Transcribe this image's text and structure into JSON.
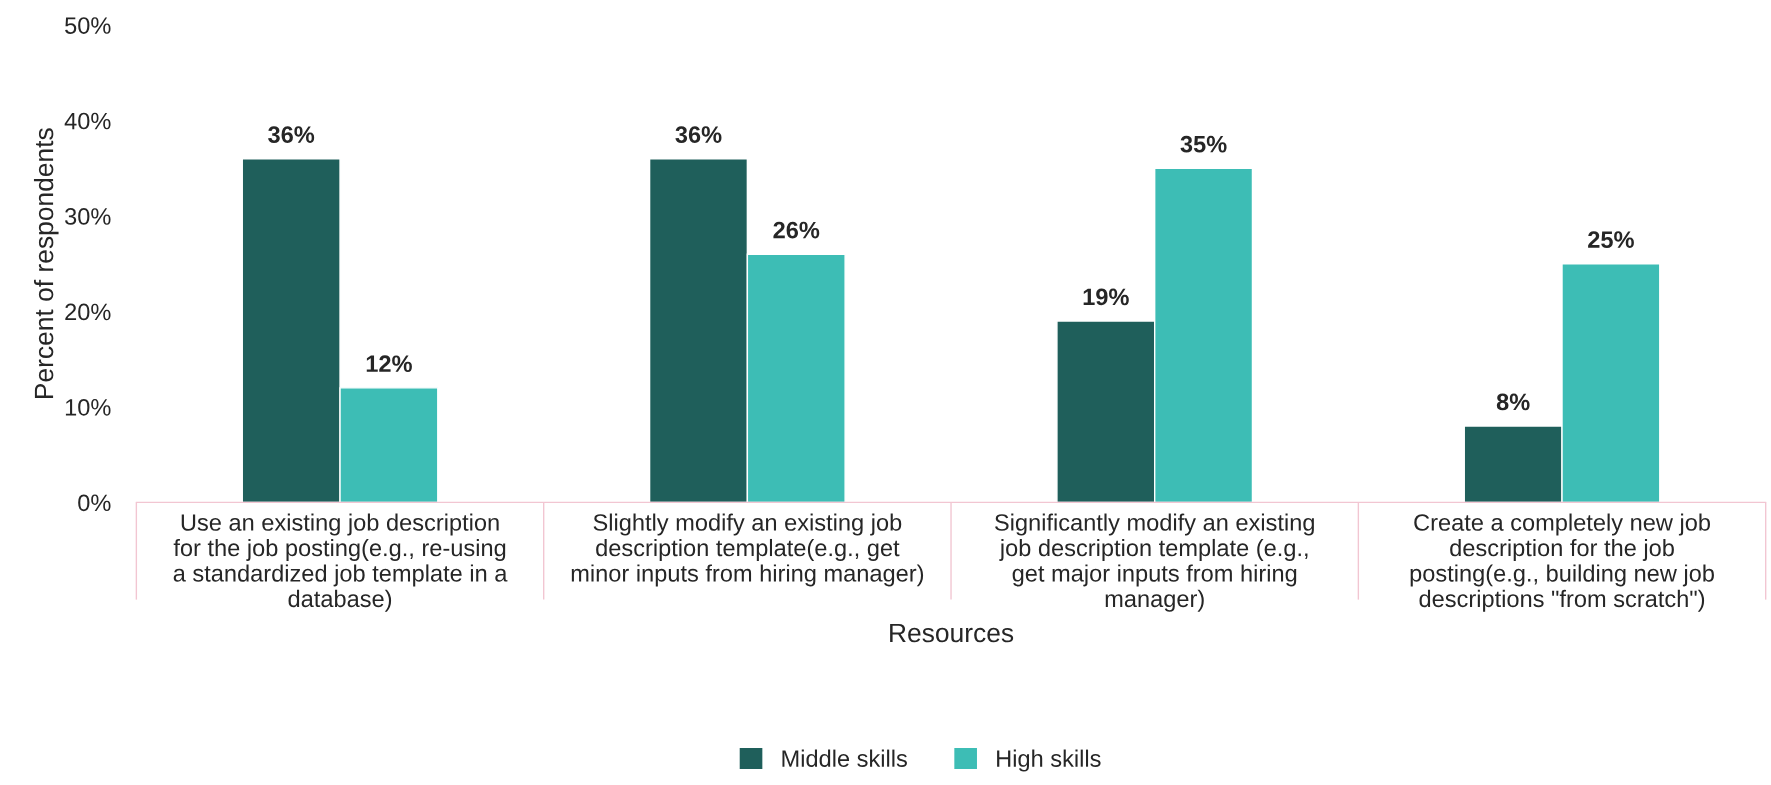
{
  "chart_data": {
    "type": "bar",
    "categories": [
      "Use an existing job description for the job posting(e.g., re-using a standardized job template in a database)",
      "Slightly modify an existing job description template(e.g., get minor inputs from hiring manager)",
      "Significantly modify an existing job description template (e.g., get major inputs from hiring manager)",
      "Create a completely new job description for the job posting(e.g., building new job descriptions \"from scratch\")"
    ],
    "series": [
      {
        "name": "Middle skills",
        "color": "#1f5f5b",
        "values": [
          36,
          36,
          19,
          8
        ],
        "value_labels": [
          "36%",
          "36%",
          "19%",
          "8%"
        ]
      },
      {
        "name": "High skills",
        "color": "#3dbdb5",
        "values": [
          12,
          26,
          35,
          25
        ],
        "value_labels": [
          "12%",
          "26%",
          "35%",
          "25%"
        ]
      }
    ],
    "xlabel": "Resources",
    "ylabel": "Percent of respondents",
    "ylim": [
      0,
      50
    ],
    "yticks": [
      {
        "value": 0,
        "label": "0%"
      },
      {
        "value": 10,
        "label": "10%"
      },
      {
        "value": 20,
        "label": "20%"
      },
      {
        "value": 30,
        "label": "30%"
      },
      {
        "value": 40,
        "label": "40%"
      },
      {
        "value": 50,
        "label": "50%"
      }
    ],
    "grid": false,
    "legend": "bottom"
  }
}
